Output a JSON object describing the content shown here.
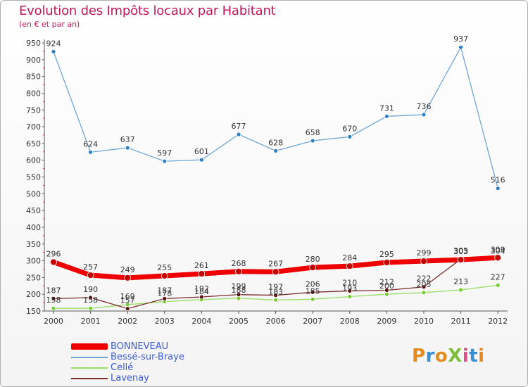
{
  "title": "Evolution des Impôts locaux par Habitant",
  "subtitle": "(en € et par an)",
  "logo": "ProXiti",
  "chart_data": {
    "type": "line",
    "title": "Evolution des Impôts locaux par Habitant",
    "subtitle": "(en € et par an)",
    "xlabel": "",
    "ylabel": "",
    "ylim": [
      150,
      950
    ],
    "yticks": [
      150,
      200,
      250,
      300,
      350,
      400,
      450,
      500,
      550,
      600,
      650,
      700,
      750,
      800,
      850,
      900,
      950
    ],
    "categories": [
      "2000",
      "2001",
      "2002",
      "2003",
      "2004",
      "2005",
      "2006",
      "2007",
      "2008",
      "2009",
      "2010",
      "2011",
      "2012"
    ],
    "legend_position": "bottom-left",
    "series": [
      {
        "name": "BONNEVEAU",
        "color": "#ee0000",
        "values": [
          296,
          257,
          249,
          255,
          261,
          268,
          267,
          280,
          284,
          295,
          299,
          303,
          309
        ],
        "labels": [
          "296",
          "257",
          "249",
          "255",
          "261",
          "268",
          "267",
          "280",
          "284",
          "295",
          "299",
          "303",
          "309"
        ]
      },
      {
        "name": "Bessé-sur-Braye",
        "color": "#6ea6d6",
        "values": [
          924,
          624,
          637,
          597,
          601,
          677,
          628,
          658,
          670,
          731,
          736,
          937,
          516
        ],
        "labels": [
          "924",
          "624",
          "637",
          "597",
          "601",
          "677",
          "628",
          "658",
          "670",
          "731",
          "736",
          "937",
          "516"
        ]
      },
      {
        "name": "Cellé",
        "color": "#99dd66",
        "values": [
          158,
          158,
          169,
          178,
          184,
          188,
          183,
          185,
          193,
          200,
          205,
          213,
          227
        ],
        "labels": [
          "158",
          "158",
          "169",
          "178",
          "184",
          "188",
          "183",
          "185",
          "193",
          "200",
          "205",
          "213",
          "227"
        ]
      },
      {
        "name": "Lavenay",
        "color": "#7a2b2b",
        "values": [
          187,
          190,
          157,
          187,
          192,
          199,
          197,
          206,
          210,
          212,
          222,
          305,
          304
        ],
        "labels": [
          "187",
          "190",
          "157",
          "187",
          "192",
          "199",
          "197",
          "206",
          "210",
          "212",
          "222",
          "305",
          "304"
        ]
      }
    ]
  }
}
